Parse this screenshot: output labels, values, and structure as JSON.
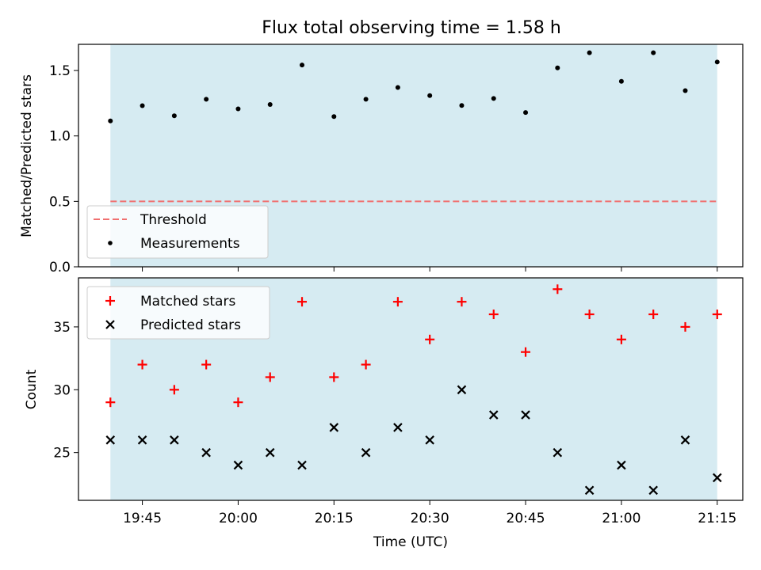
{
  "colors": {
    "band": "#add8e6",
    "threshold": "#f07070",
    "measurements": "#000000",
    "matched": "#ff0000",
    "predicted": "#000000"
  },
  "chart_data": [
    {
      "type": "scatter",
      "title": "Flux total observing time = 1.58 h",
      "xlabel": "",
      "ylabel": "Matched/Predicted stars",
      "xlim": [
        "19:35",
        "21:19"
      ],
      "ylim": [
        0,
        1.7
      ],
      "yticks": [
        0.0,
        0.5,
        1.0,
        1.5
      ],
      "ytick_labels": [
        "0.0",
        "0.5",
        "1.0",
        "1.5"
      ],
      "shaded_interval": [
        "19:40",
        "21:15"
      ],
      "threshold": 0.5,
      "legend": {
        "position": "lower-left",
        "entries": [
          "Threshold",
          "Measurements"
        ]
      },
      "x": [
        "19:40",
        "19:45",
        "19:50",
        "19:55",
        "20:00",
        "20:05",
        "20:10",
        "20:15",
        "20:20",
        "20:25",
        "20:30",
        "20:35",
        "20:40",
        "20:45",
        "20:50",
        "20:55",
        "21:00",
        "21:05",
        "21:10",
        "21:15"
      ],
      "series": [
        {
          "name": "Measurements",
          "values": [
            1.115,
            1.231,
            1.154,
            1.28,
            1.207,
            1.24,
            1.542,
            1.148,
            1.28,
            1.37,
            1.308,
            1.233,
            1.286,
            1.179,
            1.52,
            1.636,
            1.417,
            1.636,
            1.346,
            1.565
          ]
        }
      ]
    },
    {
      "type": "scatter",
      "xlabel": "Time (UTC)",
      "ylabel": "Count",
      "xlim": [
        "19:35",
        "21:19"
      ],
      "ylim": [
        21.2,
        38.9
      ],
      "xticks": [
        "19:45",
        "20:00",
        "20:15",
        "20:30",
        "20:45",
        "21:00",
        "21:15"
      ],
      "yticks": [
        25,
        30,
        35
      ],
      "ytick_labels": [
        "25",
        "30",
        "35"
      ],
      "shaded_interval": [
        "19:40",
        "21:15"
      ],
      "legend": {
        "position": "top-left",
        "entries": [
          "Matched stars",
          "Predicted stars"
        ]
      },
      "x": [
        "19:40",
        "19:45",
        "19:50",
        "19:55",
        "20:00",
        "20:05",
        "20:10",
        "20:15",
        "20:20",
        "20:25",
        "20:30",
        "20:35",
        "20:40",
        "20:45",
        "20:50",
        "20:55",
        "21:00",
        "21:05",
        "21:10",
        "21:15"
      ],
      "series": [
        {
          "name": "Matched stars",
          "values": [
            29,
            32,
            30,
            32,
            29,
            31,
            37,
            31,
            32,
            37,
            34,
            37,
            36,
            33,
            38,
            36,
            34,
            36,
            35,
            36
          ]
        },
        {
          "name": "Predicted stars",
          "values": [
            26,
            26,
            26,
            25,
            24,
            25,
            24,
            27,
            25,
            27,
            26,
            30,
            28,
            28,
            25,
            22,
            24,
            22,
            26,
            23
          ]
        }
      ]
    }
  ]
}
